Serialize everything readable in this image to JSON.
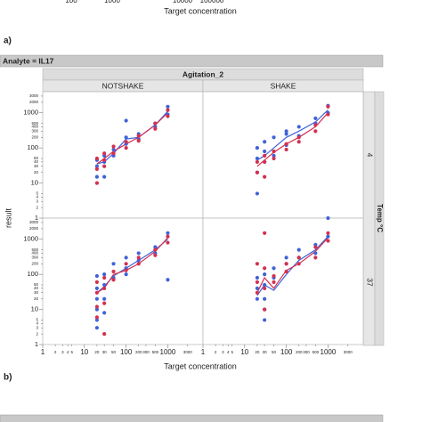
{
  "previous_axis": {
    "tick_labels": [
      "100",
      "1000",
      "10000",
      "100000"
    ],
    "label": "Target concentration"
  },
  "label_a": "a)",
  "label_b": "b)",
  "chart_data": {
    "type": "scatter",
    "analyte": "Analyte = IL17",
    "column_title": "Agitation_2",
    "columns": [
      "NOTSHAKE",
      "SHAKE"
    ],
    "row_title": "Temp °C",
    "rows": [
      "4",
      "37"
    ],
    "xlabel": "Target concentration",
    "ylabel": "result",
    "log_x": true,
    "log_y": true,
    "xlim": [
      1,
      7000
    ],
    "ylim": [
      1,
      4000
    ],
    "xticks": [
      1,
      2,
      3,
      4,
      5,
      10,
      20,
      30,
      50,
      100,
      200,
      300,
      500,
      1000,
      3000
    ],
    "yticks": [
      1,
      2,
      3,
      4,
      5,
      10,
      20,
      30,
      40,
      50,
      100,
      200,
      300,
      400,
      500,
      1000,
      2000,
      3000
    ],
    "line_x": [
      20,
      30,
      50,
      100,
      200,
      500,
      1000
    ],
    "panels": [
      [
        {
          "series": [
            {
              "color": "#3f63d8",
              "x": [
                20,
                20,
                20,
                30,
                30,
                30,
                50,
                50,
                100,
                100,
                100,
                200,
                200,
                500,
                500,
                1000,
                1000
              ],
              "y": [
                45,
                30,
                15,
                60,
                40,
                15,
                90,
                60,
                600,
                200,
                130,
                250,
                180,
                500,
                400,
                1500,
                900
              ]
            },
            {
              "color": "#d4304f",
              "x": [
                20,
                20,
                20,
                30,
                30,
                30,
                50,
                50,
                100,
                100,
                200,
                200,
                500,
                500,
                1000,
                1000
              ],
              "y": [
                50,
                25,
                10,
                70,
                45,
                30,
                110,
                70,
                150,
                100,
                220,
                160,
                500,
                350,
                1200,
                800
              ]
            }
          ],
          "lines": [
            {
              "color": "#3f63d8",
              "values": [
                35,
                40,
                70,
                180,
                200,
                450,
                1100
              ]
            },
            {
              "color": "#d4304f",
              "values": [
                35,
                50,
                80,
                130,
                200,
                450,
                1000
              ]
            }
          ]
        },
        {
          "series": [
            {
              "color": "#3f63d8",
              "x": [
                20,
                20,
                20,
                20,
                30,
                30,
                30,
                50,
                50,
                100,
                100,
                100,
                200,
                200,
                500,
                500,
                1000,
                1000
              ],
              "y": [
                100,
                50,
                20,
                5,
                150,
                80,
                40,
                200,
                60,
                300,
                250,
                120,
                400,
                220,
                700,
                500,
                1600,
                1000
              ]
            },
            {
              "color": "#d4304f",
              "x": [
                20,
                20,
                30,
                30,
                30,
                50,
                50,
                100,
                100,
                200,
                200,
                500,
                500,
                1000,
                1000
              ],
              "y": [
                40,
                20,
                60,
                40,
                15,
                80,
                50,
                130,
                90,
                200,
                150,
                450,
                300,
                1500,
                900
              ]
            }
          ],
          "lines": [
            {
              "color": "#3f63d8",
              "values": [
                45,
                60,
                100,
                200,
                300,
                550,
                1200
              ]
            },
            {
              "color": "#d4304f",
              "values": [
                30,
                45,
                75,
                130,
                200,
                400,
                1000
              ]
            }
          ]
        }
      ],
      [
        {
          "series": [
            {
              "color": "#3f63d8",
              "x": [
                20,
                20,
                20,
                20,
                20,
                20,
                30,
                30,
                30,
                30,
                50,
                50,
                100,
                100,
                100,
                200,
                200,
                500,
                500,
                1000,
                1000
              ],
              "y": [
                90,
                40,
                20,
                10,
                5,
                3,
                100,
                50,
                20,
                8,
                200,
                80,
                300,
                150,
                100,
                400,
                250,
                600,
                400,
                1500,
                70
              ]
            },
            {
              "color": "#d4304f",
              "x": [
                20,
                20,
                20,
                20,
                30,
                30,
                30,
                30,
                50,
                50,
                100,
                100,
                200,
                200,
                500,
                500,
                1000,
                1000
              ],
              "y": [
                60,
                30,
                12,
                6,
                80,
                40,
                15,
                2,
                120,
                70,
                200,
                130,
                300,
                200,
                500,
                350,
                1200,
                800
              ]
            }
          ],
          "lines": [
            {
              "color": "#3f63d8",
              "values": [
                30,
                45,
                90,
                150,
                250,
                500,
                1000
              ]
            },
            {
              "color": "#d4304f",
              "values": [
                30,
                40,
                100,
                130,
                200,
                450,
                1100
              ]
            }
          ]
        },
        {
          "series": [
            {
              "color": "#3f63d8",
              "x": [
                20,
                20,
                20,
                30,
                30,
                30,
                30,
                30,
                50,
                50,
                100,
                100,
                200,
                200,
                500,
                500,
                1000,
                1000
              ],
              "y": [
                80,
                40,
                20,
                100,
                50,
                20,
                10,
                5,
                150,
                80,
                300,
                200,
                500,
                300,
                700,
                400,
                4000,
                1200
              ]
            },
            {
              "color": "#d4304f",
              "x": [
                20,
                20,
                20,
                30,
                30,
                30,
                30,
                50,
                50,
                100,
                100,
                200,
                200,
                500,
                500,
                1000,
                1000
              ],
              "y": [
                200,
                60,
                30,
                1500,
                150,
                40,
                10,
                90,
                60,
                200,
                120,
                300,
                200,
                600,
                300,
                1500,
                900
              ]
            }
          ],
          "lines": [
            {
              "color": "#3f63d8",
              "values": [
                25,
                50,
                35,
                100,
                250,
                500,
                1200
              ]
            },
            {
              "color": "#d4304f",
              "values": [
                30,
                80,
                40,
                130,
                200,
                450,
                1100
              ]
            }
          ]
        }
      ]
    ]
  }
}
